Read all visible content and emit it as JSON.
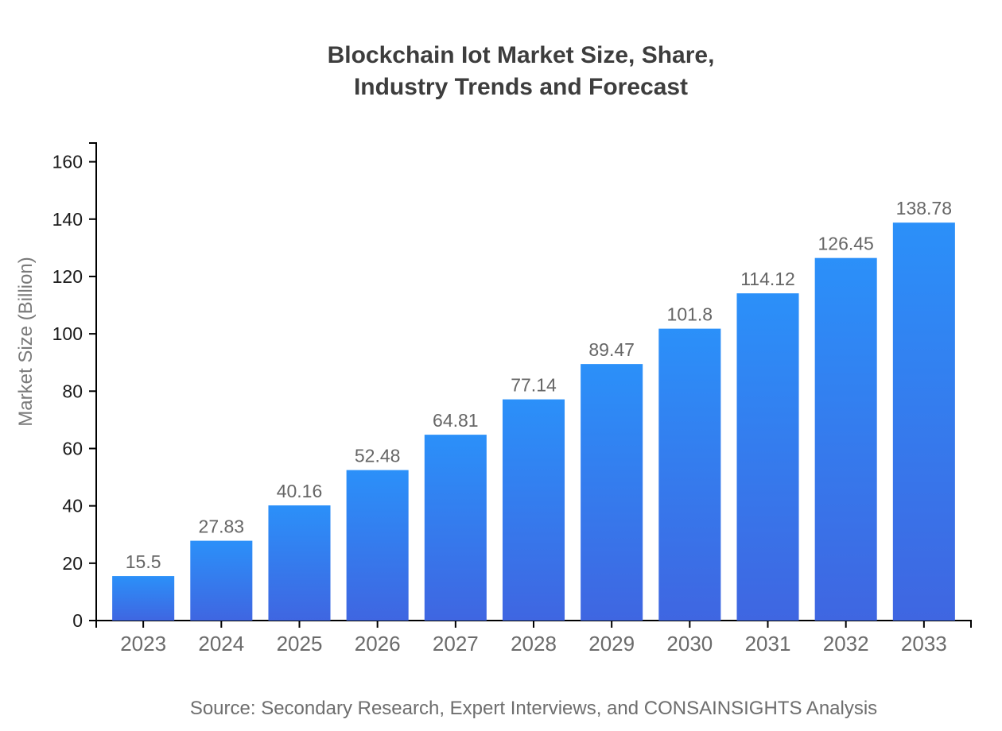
{
  "page": {
    "title_line1": "Blockchain Iot Market Size, Share,",
    "title_line2": "Industry Trends and Forecast",
    "source": "Source: Secondary Research, Expert Interviews, and CONSAINSIGHTS Analysis"
  },
  "chart_data": {
    "type": "bar",
    "title": "Blockchain Iot Market Size, Share, Industry Trends and Forecast",
    "categories": [
      "2023",
      "2024",
      "2025",
      "2026",
      "2027",
      "2028",
      "2029",
      "2030",
      "2031",
      "2032",
      "2033"
    ],
    "values": [
      15.5,
      27.83,
      40.16,
      52.48,
      64.81,
      77.14,
      89.47,
      101.8,
      114.12,
      126.45,
      138.78
    ],
    "value_labels": [
      "15.5",
      "27.83",
      "40.16",
      "52.48",
      "64.81",
      "77.14",
      "89.47",
      "101.8",
      "114.12",
      "126.45",
      "138.78"
    ],
    "xlabel": "",
    "ylabel": "Market Size (Billion)",
    "ylim": [
      0,
      166.54
    ],
    "yticks": [
      0,
      20,
      40,
      60,
      80,
      100,
      120,
      140,
      160
    ],
    "grid": false,
    "legend": false,
    "bar_color_top": "#2b90f9",
    "bar_color_bottom": "#3f66e1",
    "axis_color": "#000000",
    "y_tick_label_color": "#1a1a1a",
    "x_tick_label_color": "#6b6b6b",
    "value_label_color": "#666666"
  }
}
